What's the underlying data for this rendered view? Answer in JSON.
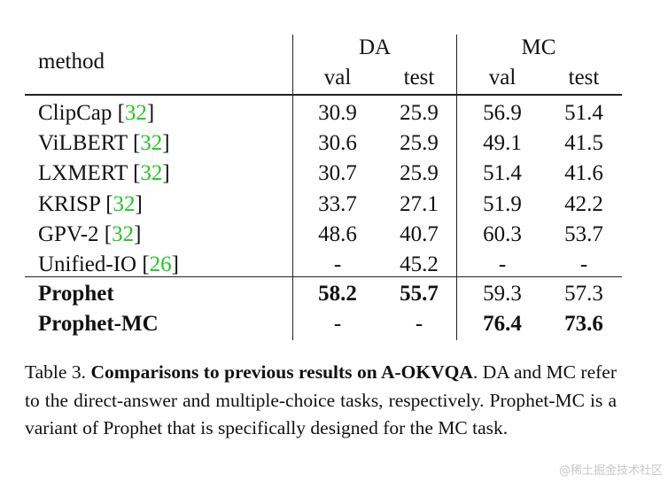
{
  "table": {
    "method_header": "method",
    "groups": [
      {
        "label": "DA",
        "cols": [
          "val",
          "test"
        ]
      },
      {
        "label": "MC",
        "cols": [
          "val",
          "test"
        ]
      }
    ],
    "rows": [
      {
        "method": "ClipCap ",
        "cite": "32",
        "da_val": "30.9",
        "da_test": "25.9",
        "mc_val": "56.9",
        "mc_test": "51.4"
      },
      {
        "method": "ViLBERT ",
        "cite": "32",
        "da_val": "30.6",
        "da_test": "25.9",
        "mc_val": "49.1",
        "mc_test": "41.5"
      },
      {
        "method": "LXMERT ",
        "cite": "32",
        "da_val": "30.7",
        "da_test": "25.9",
        "mc_val": "51.4",
        "mc_test": "41.6"
      },
      {
        "method": "KRISP ",
        "cite": "32",
        "da_val": "33.7",
        "da_test": "27.1",
        "mc_val": "51.9",
        "mc_test": "42.2"
      },
      {
        "method": "GPV-2 ",
        "cite": "32",
        "da_val": "48.6",
        "da_test": "40.7",
        "mc_val": "60.3",
        "mc_test": "53.7"
      },
      {
        "method": "Unified-IO ",
        "cite": "26",
        "da_val": "-",
        "da_test": "45.2",
        "mc_val": "-",
        "mc_test": "-"
      }
    ],
    "ours": [
      {
        "method": "Prophet",
        "da_val": "58.2",
        "da_test": "55.7",
        "mc_val": "59.3",
        "mc_test": "57.3"
      },
      {
        "method": "Prophet-MC",
        "da_val": "-",
        "da_test": "-",
        "mc_val": "76.4",
        "mc_test": "73.6"
      }
    ]
  },
  "caption": {
    "label": "Table 3.",
    "title": "Comparisons to previous results on A-OKVQA",
    "text": ". DA and MC refer to the direct-answer and multiple-choice tasks, respectively. Prophet-MC is a variant of Prophet that is specifically designed for the MC task."
  },
  "watermark": "@稀土掘金技术社区"
}
